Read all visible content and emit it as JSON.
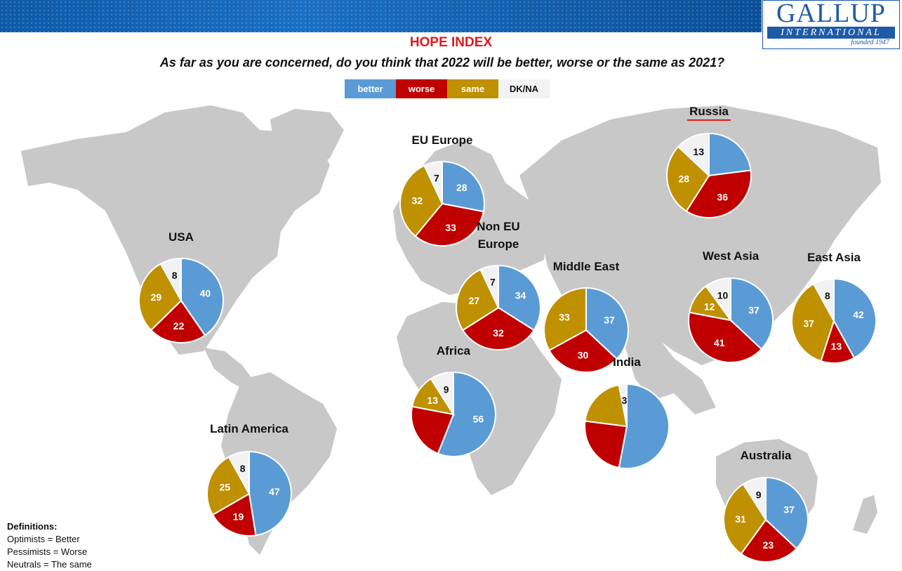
{
  "header": {
    "logo_main": "GALLUP",
    "logo_sub": "INTERNATIONAL",
    "logo_founded": "founded 1947",
    "title": "HOPE INDEX",
    "question": "As far as you are concerned, do you think that 2022 will be better, worse or the same as 2021?"
  },
  "legend": [
    {
      "label": "better",
      "color": "#5b9bd5"
    },
    {
      "label": "worse",
      "color": "#c00000"
    },
    {
      "label": "same",
      "color": "#bf9000"
    },
    {
      "label": "DK/NA",
      "color": "#f2f2f2"
    }
  ],
  "definitions": {
    "heading": "Definitions:",
    "lines": [
      "Optimists = Better",
      "Pessimists = Worse",
      "Neutrals = The same"
    ]
  },
  "chart_data": [
    {
      "type": "pie",
      "title": "USA",
      "categories": [
        "better",
        "worse",
        "same",
        "DK/NA"
      ],
      "values": [
        40,
        22,
        29,
        8
      ]
    },
    {
      "type": "pie",
      "title": "EU Europe",
      "categories": [
        "better",
        "worse",
        "same",
        "DK/NA"
      ],
      "values": [
        28,
        33,
        32,
        7
      ]
    },
    {
      "type": "pie",
      "title": "Russia",
      "categories": [
        "better",
        "worse",
        "same",
        "DK/NA"
      ],
      "values": [
        23,
        36,
        28,
        13
      ],
      "printed_labels": [
        "",
        "36",
        "28",
        "13"
      ]
    },
    {
      "type": "pie",
      "title": "Non EU Europe",
      "categories": [
        "better",
        "worse",
        "same",
        "DK/NA"
      ],
      "values": [
        34,
        32,
        27,
        7
      ]
    },
    {
      "type": "pie",
      "title": "Middle East",
      "categories": [
        "better",
        "worse",
        "same",
        "DK/NA"
      ],
      "values": [
        37,
        30,
        33,
        0
      ],
      "printed_labels": [
        "37",
        "30",
        "33",
        ""
      ]
    },
    {
      "type": "pie",
      "title": "West Asia",
      "categories": [
        "better",
        "worse",
        "same",
        "DK/NA"
      ],
      "values": [
        37,
        41,
        12,
        10
      ]
    },
    {
      "type": "pie",
      "title": "East Asia",
      "categories": [
        "better",
        "worse",
        "same",
        "DK/NA"
      ],
      "values": [
        42,
        13,
        37,
        8
      ]
    },
    {
      "type": "pie",
      "title": "Africa",
      "categories": [
        "better",
        "worse",
        "same",
        "DK/NA"
      ],
      "values": [
        56,
        22,
        13,
        9
      ],
      "printed_labels": [
        "56",
        "",
        "13",
        "9"
      ]
    },
    {
      "type": "pie",
      "title": "India",
      "categories": [
        "better",
        "worse",
        "same",
        "DK/NA"
      ],
      "values": [
        53,
        24,
        20,
        3
      ],
      "printed_labels": [
        "",
        "",
        "",
        "3"
      ]
    },
    {
      "type": "pie",
      "title": "Latin America",
      "categories": [
        "better",
        "worse",
        "same",
        "DK/NA"
      ],
      "values": [
        47,
        19,
        25,
        8
      ]
    },
    {
      "type": "pie",
      "title": "Australia",
      "categories": [
        "better",
        "worse",
        "same",
        "DK/NA"
      ],
      "values": [
        37,
        23,
        31,
        9
      ]
    }
  ]
}
